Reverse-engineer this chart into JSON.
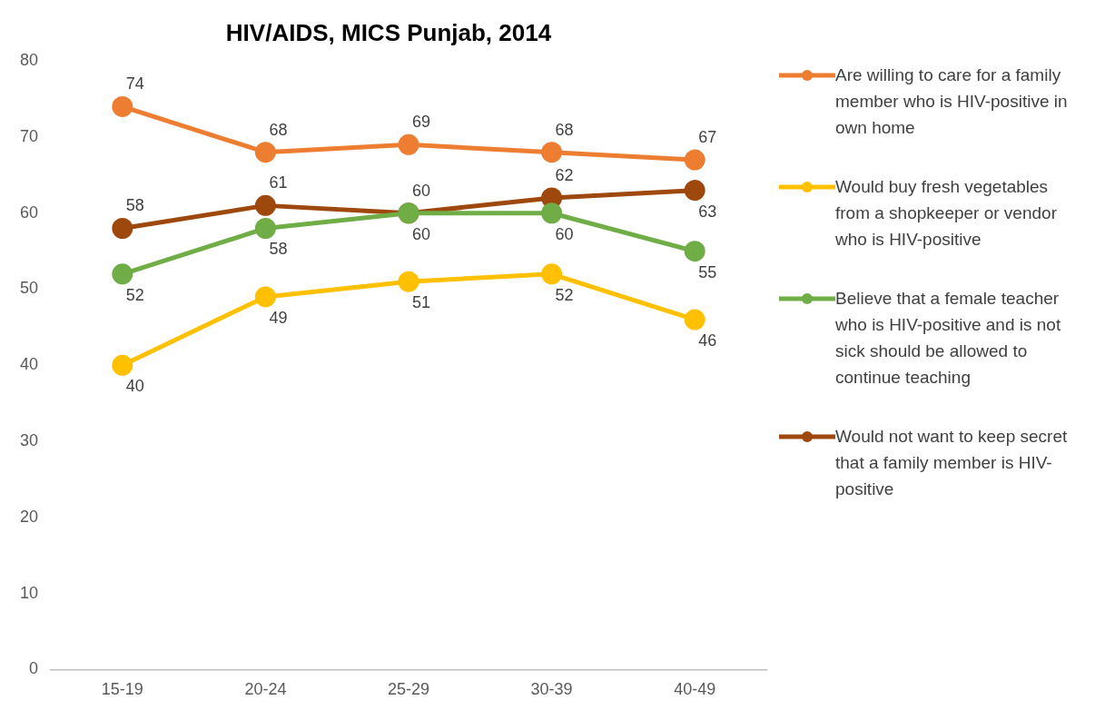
{
  "chart_data": {
    "type": "line",
    "title": "HIV/AIDS, MICS Punjab, 2014",
    "categories": [
      "15-19",
      "20-24",
      "25-29",
      "30-39",
      "40-49"
    ],
    "series": [
      {
        "name": "Are willing to care for a family member who is HIV-positive in own home",
        "color": "#ed7d31",
        "values": [
          74,
          68,
          69,
          68,
          67
        ]
      },
      {
        "name": "Would buy fresh vegetables from a shopkeeper or vendor who is HIV-positive",
        "color": "#ffc000",
        "values": [
          40,
          49,
          51,
          52,
          46
        ]
      },
      {
        "name": "Believe that a female teacher who is HIV-positive and is not sick should be allowed to continue teaching",
        "color": "#70ad47",
        "values": [
          52,
          58,
          60,
          60,
          55
        ]
      },
      {
        "name": "Would not want to keep secret that a family member is HIV-positive",
        "color": "#9e480e",
        "values": [
          58,
          61,
          60,
          62,
          63
        ]
      }
    ],
    "ylim": [
      0,
      80
    ],
    "yticks": [
      0,
      10,
      20,
      30,
      40,
      50,
      60,
      70,
      80
    ],
    "grid": false,
    "legend": "right",
    "marker": "circle",
    "line_style": "solid",
    "data_labels": true
  }
}
